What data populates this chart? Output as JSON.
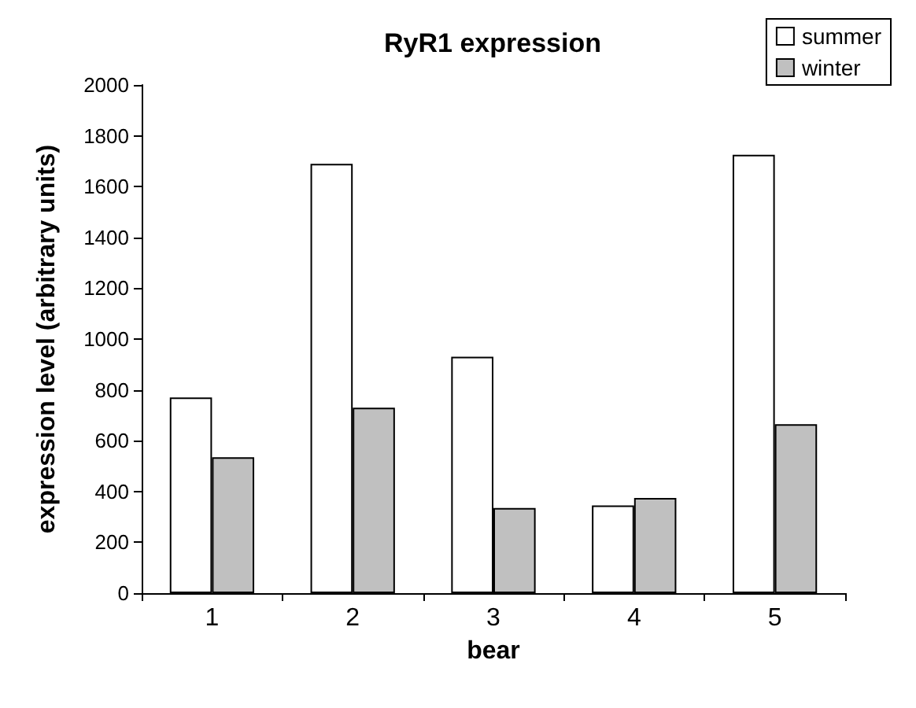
{
  "chart_data": {
    "type": "bar",
    "title": "RyR1 expression",
    "xlabel": "bear",
    "ylabel": "expression level (arbitrary units)",
    "categories": [
      "1",
      "2",
      "3",
      "4",
      "5"
    ],
    "series": [
      {
        "name": "summer",
        "color": "#ffffff",
        "values": [
          770,
          1690,
          930,
          345,
          1725
        ]
      },
      {
        "name": "winter",
        "color": "#c0c0c0",
        "values": [
          535,
          730,
          335,
          375,
          665
        ]
      }
    ],
    "ylim": [
      0,
      2000
    ],
    "yticks": [
      0,
      200,
      400,
      600,
      800,
      1000,
      1200,
      1400,
      1600,
      1800,
      2000
    ],
    "grid": false,
    "legend": "top right"
  }
}
